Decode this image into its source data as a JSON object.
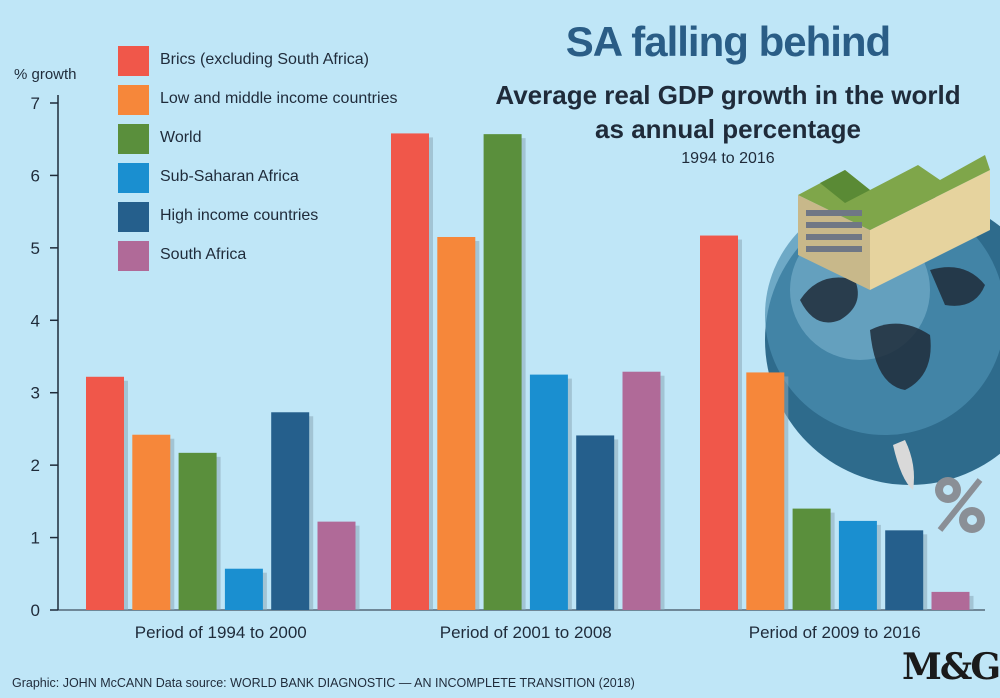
{
  "title": "SA falling behind",
  "subtitle_line1": "Average real GDP growth in the world",
  "subtitle_line2": "as annual percentage",
  "subtitle_line3": "1994 to 2016",
  "credit": "Graphic: JOHN McCANN  Data source: WORLD BANK DIAGNOSTIC — AN INCOMPLETE TRANSITION (2018)",
  "logo_text": "M&G",
  "chart_data": {
    "type": "bar",
    "title": "SA falling behind",
    "ylabel": "% growth",
    "xlabel": "",
    "ylim": [
      0,
      7
    ],
    "yticks": [
      0,
      1,
      2,
      3,
      4,
      5,
      6,
      7
    ],
    "grid": false,
    "legend_position": "top-left",
    "categories": [
      "Period of 1994 to 2000",
      "Period of 2001 to 2008",
      "Period of 2009 to 2016"
    ],
    "series": [
      {
        "name": "Brics (excluding South Africa)",
        "color": "#f0574a",
        "values": [
          3.22,
          6.58,
          5.17
        ]
      },
      {
        "name": "Low and middle income countries",
        "color": "#f6873a",
        "values": [
          2.42,
          5.15,
          3.28
        ]
      },
      {
        "name": "World",
        "color": "#5a8f3c",
        "values": [
          2.17,
          6.57,
          1.4
        ]
      },
      {
        "name": "Sub-Saharan Africa",
        "color": "#1a8fd0",
        "values": [
          0.57,
          3.25,
          1.23
        ]
      },
      {
        "name": "High income countries",
        "color": "#255f8c",
        "values": [
          2.73,
          2.41,
          1.1
        ]
      },
      {
        "name": "South Africa",
        "color": "#b06a98",
        "values": [
          1.22,
          3.29,
          0.25
        ]
      }
    ]
  }
}
